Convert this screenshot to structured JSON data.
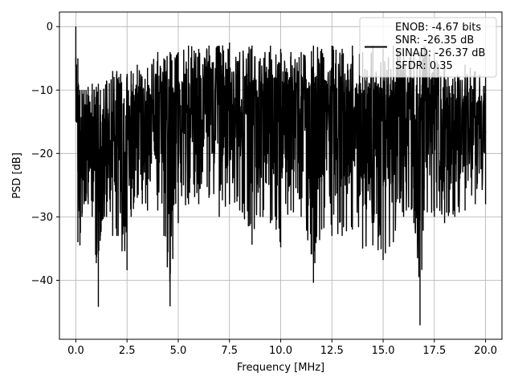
{
  "chart_data": {
    "type": "line",
    "title": "",
    "xlabel": "Frequency [MHz]",
    "ylabel": "PSD [dB]",
    "xlim": [
      -0.8,
      20.8
    ],
    "ylim": [
      -49.3,
      2.3
    ],
    "grid": true,
    "legend_position": "top-right",
    "x_ticks": [
      "0.0",
      "2.5",
      "5.0",
      "7.5",
      "10.0",
      "12.5",
      "15.0",
      "17.5",
      "20.0"
    ],
    "x_tick_values": [
      0,
      2.5,
      5,
      7.5,
      10,
      12.5,
      15,
      17.5,
      20
    ],
    "y_ticks": [
      "0",
      "−10",
      "−20",
      "−30",
      "−40"
    ],
    "y_tick_values": [
      0,
      -10,
      -20,
      -30,
      -40
    ],
    "series": [
      {
        "color": "#000000",
        "x": [
          0.0,
          0.1,
          0.2,
          0.3,
          0.4,
          0.5,
          0.6,
          0.8,
          1.0,
          1.1,
          1.2,
          1.5,
          1.8,
          2.0,
          2.5,
          2.7,
          3.0,
          3.5,
          4.0,
          4.3,
          4.6,
          5.0,
          5.5,
          6.0,
          6.5,
          7.0,
          7.5,
          8.0,
          8.6,
          9.0,
          9.5,
          10.0,
          10.5,
          11.0,
          11.6,
          12.0,
          12.5,
          13.0,
          13.5,
          14.0,
          14.5,
          15.0,
          15.5,
          16.0,
          16.5,
          16.8,
          17.0,
          17.5,
          18.0,
          18.5,
          19.0,
          19.5,
          20.0
        ],
        "upper": [
          0.0,
          -5.0,
          -10.0,
          -10.0,
          -10.0,
          -10.0,
          -9.5,
          -9.0,
          -9.5,
          -9.0,
          -10.0,
          -8.5,
          -7.0,
          -7.0,
          -7.5,
          -7.0,
          -6.0,
          -6.5,
          -4.0,
          -5.0,
          -4.0,
          -4.0,
          -3.0,
          -3.5,
          -3.0,
          -3.0,
          -2.5,
          -4.0,
          -3.0,
          -5.0,
          -3.0,
          -3.5,
          -4.0,
          -4.0,
          -3.0,
          -3.5,
          -3.0,
          -3.5,
          -3.0,
          -4.0,
          -3.0,
          -3.5,
          -3.0,
          -3.5,
          -4.0,
          -4.0,
          -3.0,
          -4.0,
          -6.0,
          -8.0,
          -6.0,
          -7.0,
          -8.0
        ],
        "lower": [
          -15.0,
          -34.0,
          -34.5,
          -30.0,
          -28.0,
          -27.5,
          -28.0,
          -30.0,
          -37.3,
          -44.2,
          -33.0,
          -30.0,
          -33.0,
          -33.0,
          -38.4,
          -30.0,
          -27.0,
          -29.0,
          -29.0,
          -33.0,
          -44.1,
          -31.0,
          -28.0,
          -28.0,
          -27.0,
          -30.0,
          -28.0,
          -29.0,
          -34.4,
          -30.0,
          -31.0,
          -34.8,
          -29.0,
          -30.0,
          -40.4,
          -32.0,
          -33.0,
          -33.0,
          -32.0,
          -35.0,
          -34.5,
          -36.8,
          -34.0,
          -30.0,
          -31.0,
          -47.1,
          -29.0,
          -30.0,
          -31.0,
          -30.0,
          -29.0,
          -28.0,
          -28.0
        ]
      }
    ]
  },
  "legend": {
    "entries": [
      "ENOB: -4.67 bits",
      "SNR: -26.35 dB",
      "SINAD: -26.37 dB",
      "SFDR: 0.35"
    ]
  }
}
